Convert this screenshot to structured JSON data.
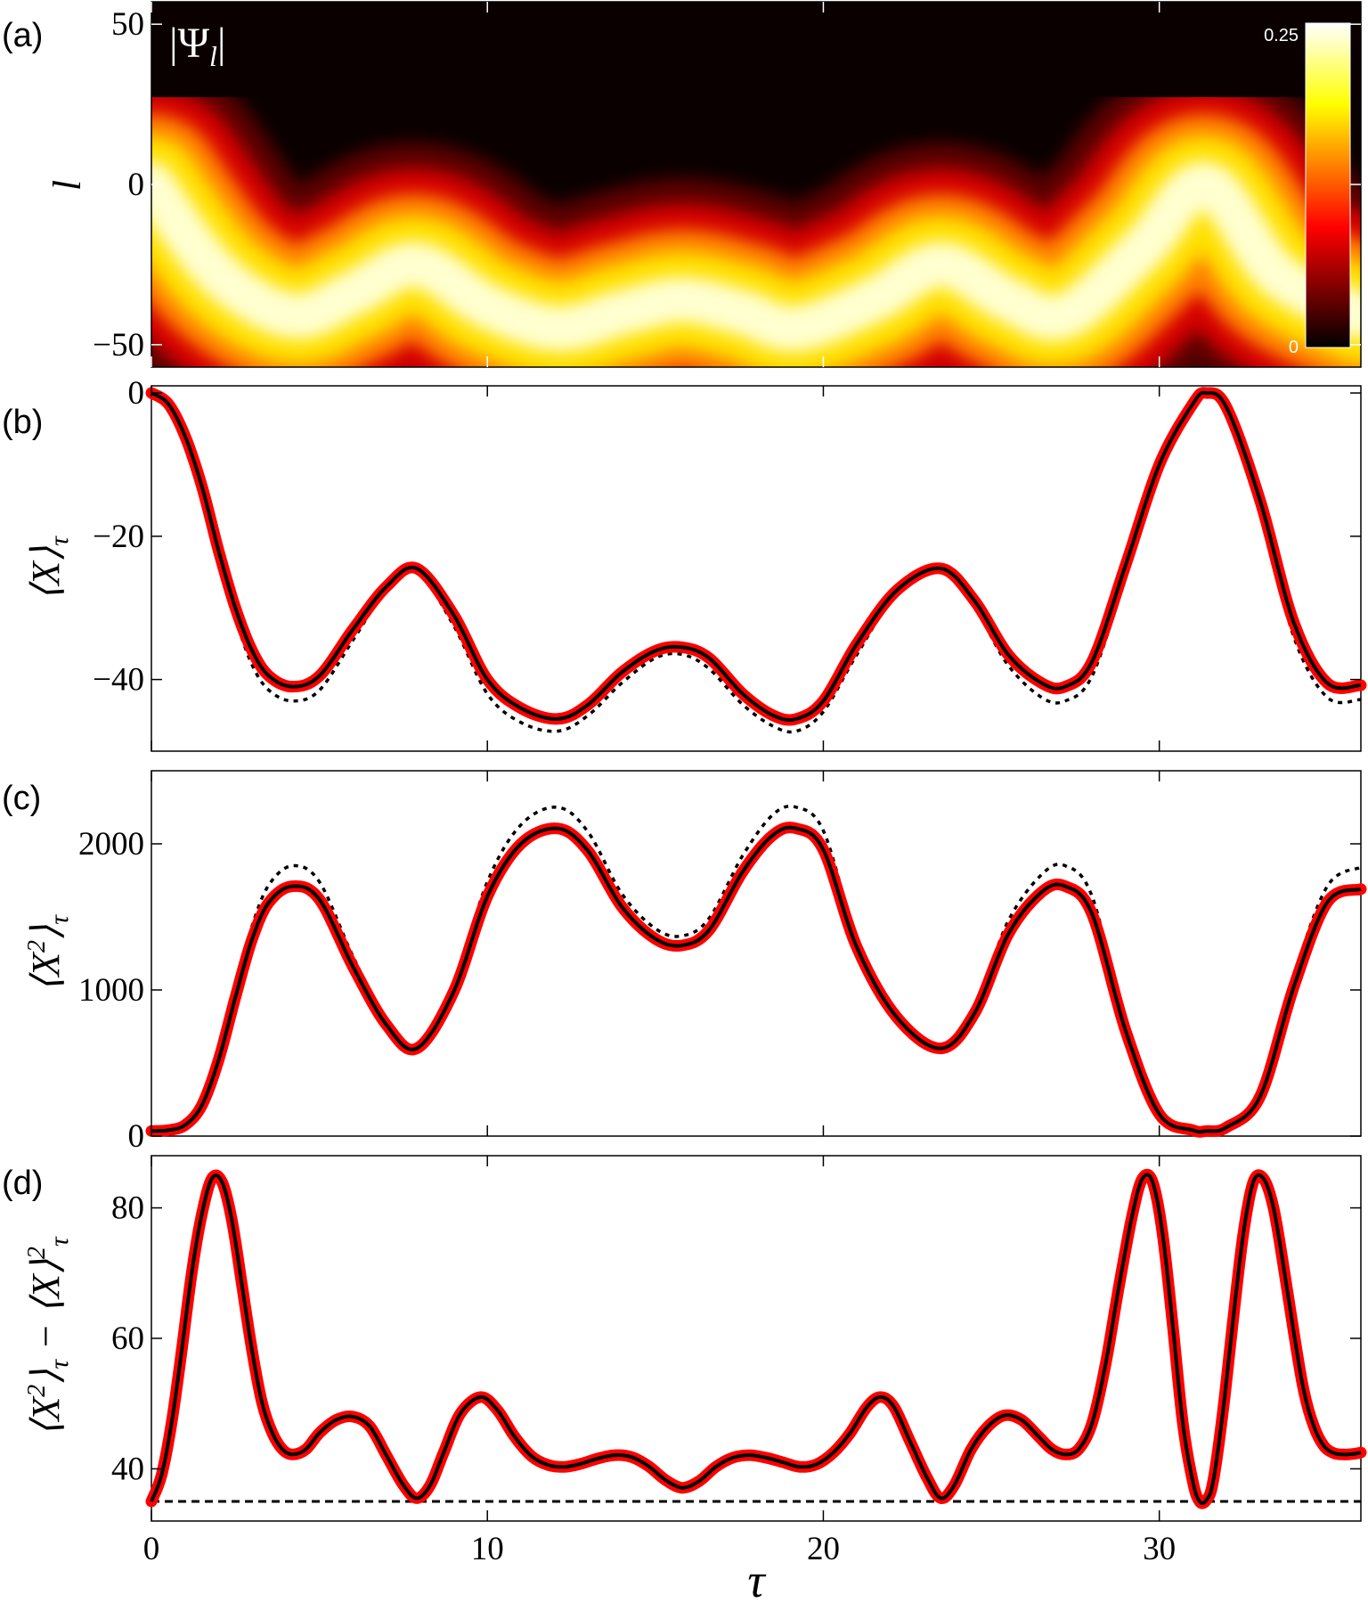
{
  "figure": {
    "x_label": "τ",
    "x_ticks": [
      "0",
      "10",
      "20",
      "30"
    ]
  },
  "chart_data": [
    {
      "panel_label": "(a)",
      "type": "heatmap",
      "title": "|Ψ_l|",
      "title_parts": {
        "open": "|Ψ",
        "sub": "l",
        "close": "|"
      },
      "ylabel": "l",
      "xlim": [
        0,
        36
      ],
      "ylim": [
        -57,
        57
      ],
      "y_ticks": [
        "50",
        "0",
        "−50"
      ],
      "y_tick_values": [
        50,
        0,
        -50
      ],
      "colorbar": {
        "min": 0,
        "max": 0.25,
        "min_label": "0",
        "max_label": "0.25",
        "colormap": "hot"
      },
      "ridge_center": {
        "x": [
          0,
          2,
          4.2,
          6,
          7.9,
          10,
          12.1,
          14,
          15.8,
          17.6,
          19.2,
          21.5,
          23.5,
          25.5,
          27.2,
          29.5,
          31.4,
          33.5,
          36
        ],
        "y": [
          0,
          -28,
          -41,
          -34,
          -25,
          -38,
          -45,
          -40,
          -36,
          -40,
          -45,
          -36,
          -25,
          -36,
          -41,
          -20,
          0,
          -28,
          -41
        ]
      },
      "ridge_width": 8
    },
    {
      "panel_label": "(b)",
      "type": "line",
      "ylabel": "⟨X⟩_τ",
      "ylabel_parts": {
        "main": "⟨X⟩",
        "sub": "τ"
      },
      "xlim": [
        0,
        36
      ],
      "ylim": [
        -50,
        1
      ],
      "y_ticks": [
        "0",
        "−20",
        "−40"
      ],
      "y_tick_values": [
        0,
        -20,
        -40
      ],
      "series": [
        {
          "style": "thick-red-with-black-core",
          "color": "#ff0000",
          "x": [
            0,
            0.5,
            1,
            1.5,
            2,
            2.5,
            3,
            3.5,
            4.2,
            5,
            6,
            7,
            7.9,
            9,
            10,
            11,
            12.1,
            13,
            14,
            15,
            15.8,
            16.6,
            17.6,
            18.5,
            19.2,
            20,
            21,
            22.2,
            23.5,
            24.5,
            25.5,
            26.5,
            27.2,
            28,
            29,
            30,
            31,
            31.4,
            32,
            33,
            34,
            35,
            36
          ],
          "y": [
            0,
            -1.5,
            -6,
            -13,
            -22,
            -30,
            -36,
            -39.5,
            -41,
            -39.5,
            -33,
            -27,
            -24.5,
            -31,
            -40,
            -44,
            -45.5,
            -43.5,
            -39,
            -36,
            -35.5,
            -37,
            -42,
            -45,
            -45.5,
            -43,
            -35,
            -27.5,
            -24.5,
            -29,
            -36.5,
            -40.5,
            -41,
            -37.5,
            -24,
            -10,
            -1.5,
            0,
            -2,
            -15,
            -32,
            -40.5,
            -40.8
          ]
        },
        {
          "style": "black-dotted",
          "color": "#000000",
          "x": [
            0,
            0.5,
            1,
            1.5,
            2,
            2.5,
            3,
            3.5,
            4.2,
            5,
            6,
            7,
            7.9,
            9,
            10,
            11,
            12.1,
            13,
            14,
            15,
            15.8,
            16.6,
            17.6,
            18.5,
            19.2,
            20,
            21,
            22.2,
            23.5,
            24.5,
            25.5,
            26.5,
            27.2,
            28,
            29,
            30,
            31,
            31.4,
            32,
            33,
            34,
            35,
            36
          ],
          "y": [
            0,
            -1.7,
            -6.5,
            -14,
            -23.5,
            -31.5,
            -38,
            -41.5,
            -43,
            -41.5,
            -34.5,
            -27.5,
            -25,
            -32.5,
            -42,
            -46,
            -47.2,
            -45,
            -40.5,
            -37,
            -36.5,
            -38.5,
            -43.5,
            -46.5,
            -47.2,
            -44.5,
            -36.5,
            -28,
            -25,
            -30,
            -38,
            -42.5,
            -43,
            -39.5,
            -25.5,
            -10.5,
            -1.6,
            0,
            -2.2,
            -16,
            -34,
            -42.5,
            -42.8
          ]
        }
      ]
    },
    {
      "panel_label": "(c)",
      "type": "line",
      "ylabel": "⟨X²⟩_τ",
      "ylabel_parts": {
        "main": "⟨X",
        "sup": "2",
        "close": "⟩",
        "sub": "τ"
      },
      "xlim": [
        0,
        36
      ],
      "ylim": [
        0,
        2500
      ],
      "y_ticks": [
        "2000",
        "1000",
        "0"
      ],
      "y_tick_values": [
        2000,
        1000,
        0
      ],
      "series": [
        {
          "style": "thick-red-with-black-core",
          "color": "#ff0000",
          "x": [
            0,
            0.5,
            1,
            1.5,
            2,
            2.5,
            3,
            3.5,
            4.2,
            5,
            6,
            7,
            7.9,
            9,
            10,
            11,
            12.1,
            13,
            14,
            15,
            15.8,
            16.6,
            17.6,
            18.5,
            19.2,
            20,
            21,
            22.2,
            23.5,
            24.5,
            25.5,
            26.5,
            27.2,
            28,
            29,
            30,
            31,
            31.4,
            32,
            33,
            34,
            35,
            36
          ],
          "y": [
            35,
            40,
            75,
            210,
            520,
            950,
            1350,
            1600,
            1710,
            1620,
            1160,
            760,
            600,
            990,
            1640,
            2000,
            2105,
            1950,
            1570,
            1350,
            1305,
            1410,
            1810,
            2060,
            2105,
            1960,
            1290,
            810,
            600,
            840,
            1380,
            1670,
            1710,
            1520,
            720,
            150,
            40,
            35,
            60,
            270,
            1020,
            1600,
            1690
          ]
        },
        {
          "style": "black-dotted",
          "color": "#000000",
          "x": [
            0,
            0.5,
            1,
            1.5,
            2,
            2.5,
            3,
            3.5,
            4.2,
            5,
            6,
            7,
            7.9,
            9,
            10,
            11,
            12.1,
            13,
            14,
            15,
            15.8,
            16.6,
            17.6,
            18.5,
            19.2,
            20,
            21,
            22.2,
            23.5,
            24.5,
            25.5,
            26.5,
            27.2,
            28,
            29,
            30,
            31,
            31.4,
            32,
            33,
            34,
            35,
            36
          ],
          "y": [
            35,
            40,
            80,
            230,
            560,
            1010,
            1440,
            1720,
            1850,
            1740,
            1230,
            790,
            630,
            1040,
            1740,
            2130,
            2250,
            2080,
            1660,
            1420,
            1370,
            1490,
            1920,
            2200,
            2250,
            2090,
            1360,
            850,
            630,
            880,
            1470,
            1790,
            1850,
            1640,
            760,
            160,
            40,
            35,
            65,
            290,
            1090,
            1710,
            1840
          ]
        }
      ]
    },
    {
      "panel_label": "(d)",
      "type": "line",
      "ylabel": "⟨X²⟩_τ − ⟨X⟩²_τ",
      "ylabel_parts": {
        "a": "⟨X",
        "a_sup": "2",
        "a_close": "⟩",
        "a_sub": "τ",
        "minus": " − ",
        "b": "⟨X⟩",
        "b_sup": "2",
        "b_sub": "τ"
      },
      "xlim": [
        0,
        36
      ],
      "ylim": [
        32,
        88
      ],
      "y_ticks": [
        "80",
        "60",
        "40"
      ],
      "y_tick_values": [
        80,
        60,
        40
      ],
      "series": [
        {
          "style": "thick-red-with-black-core",
          "color": "#ff0000",
          "x": [
            0,
            0.3,
            0.6,
            0.9,
            1.2,
            1.5,
            1.8,
            2.1,
            2.4,
            2.7,
            3.0,
            3.3,
            3.6,
            3.9,
            4.2,
            4.6,
            5.0,
            5.5,
            6.0,
            6.5,
            7.0,
            7.5,
            7.9,
            8.3,
            8.7,
            9.2,
            9.8,
            10.3,
            10.8,
            11.3,
            11.8,
            12.3,
            12.8,
            13.3,
            13.8,
            14.3,
            14.8,
            15.3,
            15.8,
            16.3,
            16.8,
            17.3,
            17.8,
            18.3,
            18.8,
            19.3,
            19.8,
            20.3,
            20.8,
            21.3,
            21.7,
            22.1,
            22.6,
            23.1,
            23.5,
            23.9,
            24.4,
            24.9,
            25.4,
            25.9,
            26.4,
            26.8,
            27.2,
            27.6,
            28.0,
            28.4,
            28.8,
            29.2,
            29.5,
            29.8,
            30.1,
            30.4,
            30.7,
            31.0,
            31.2,
            31.4,
            31.6,
            31.9,
            32.2,
            32.5,
            32.8,
            33.1,
            33.4,
            33.7,
            34.0,
            34.3,
            34.6,
            34.9,
            35.2,
            35.5,
            35.8,
            36
          ],
          "y": [
            35,
            39,
            47,
            58,
            70,
            79,
            84.5,
            84,
            78,
            68,
            58,
            50,
            45.5,
            43,
            42.2,
            43,
            45.5,
            47.5,
            48,
            46.5,
            42,
            37.5,
            35.5,
            37.5,
            42.5,
            48.5,
            51,
            49,
            45,
            42,
            40.6,
            40.3,
            40.8,
            41.6,
            42.1,
            41.8,
            40.4,
            38.3,
            37.1,
            38.1,
            40.3,
            41.7,
            42.1,
            41.7,
            41,
            40.3,
            40.7,
            42.5,
            45.5,
            49.5,
            51,
            49.5,
            44,
            38.5,
            35.5,
            37.5,
            43,
            46.5,
            48.2,
            47.5,
            45,
            43,
            42.2,
            43,
            47,
            56,
            68,
            79,
            84.5,
            84,
            76,
            62,
            47,
            38,
            35,
            35.2,
            38,
            49,
            63,
            76,
            84,
            84.5,
            80,
            71,
            61,
            52,
            46.5,
            43.5,
            42.4,
            42.2,
            42.3,
            42.5
          ]
        },
        {
          "style": "black-dashed-horizontal",
          "color": "#000000",
          "x": [
            0,
            36
          ],
          "y": [
            35,
            35
          ]
        }
      ]
    }
  ]
}
